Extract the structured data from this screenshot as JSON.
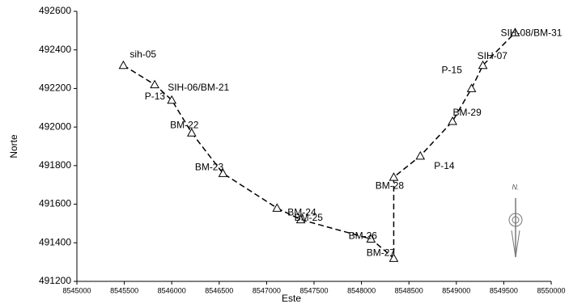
{
  "chart_data": {
    "type": "line",
    "x_label": "Este",
    "y_label": "Norte",
    "x": [
      8545490,
      8545820,
      8546000,
      8546210,
      8546540,
      8547110,
      8547360,
      8548100,
      8548340,
      8548340,
      8548620,
      8548960,
      8549160,
      8549280,
      8549620
    ],
    "values": [
      492320,
      492220,
      492140,
      491970,
      491760,
      491580,
      491520,
      491420,
      491320,
      491740,
      491850,
      492030,
      492200,
      492320,
      492490
    ],
    "point_labels": [
      "sih-05",
      "P-13",
      "SIH-06/BM-21",
      "BM-22",
      "BM-23",
      "BM-24",
      "BM-25",
      "BM-26",
      "BM-27",
      "BM-28",
      "P-14",
      "BM-29",
      "P-15",
      "SIH-07",
      "SIH-08/BM-31"
    ],
    "color": "#000000",
    "xlim": [
      8545000,
      8550000
    ],
    "xticks": [
      8545000,
      8545500,
      8546000,
      8546500,
      8547000,
      8547500,
      8548000,
      8548500,
      8549000,
      8549500,
      8550000
    ],
    "ylim": [
      491200,
      492600
    ],
    "yticks": [
      491200,
      491400,
      491600,
      491800,
      492000,
      492200,
      492400,
      492600
    ],
    "compass_label": "N."
  }
}
